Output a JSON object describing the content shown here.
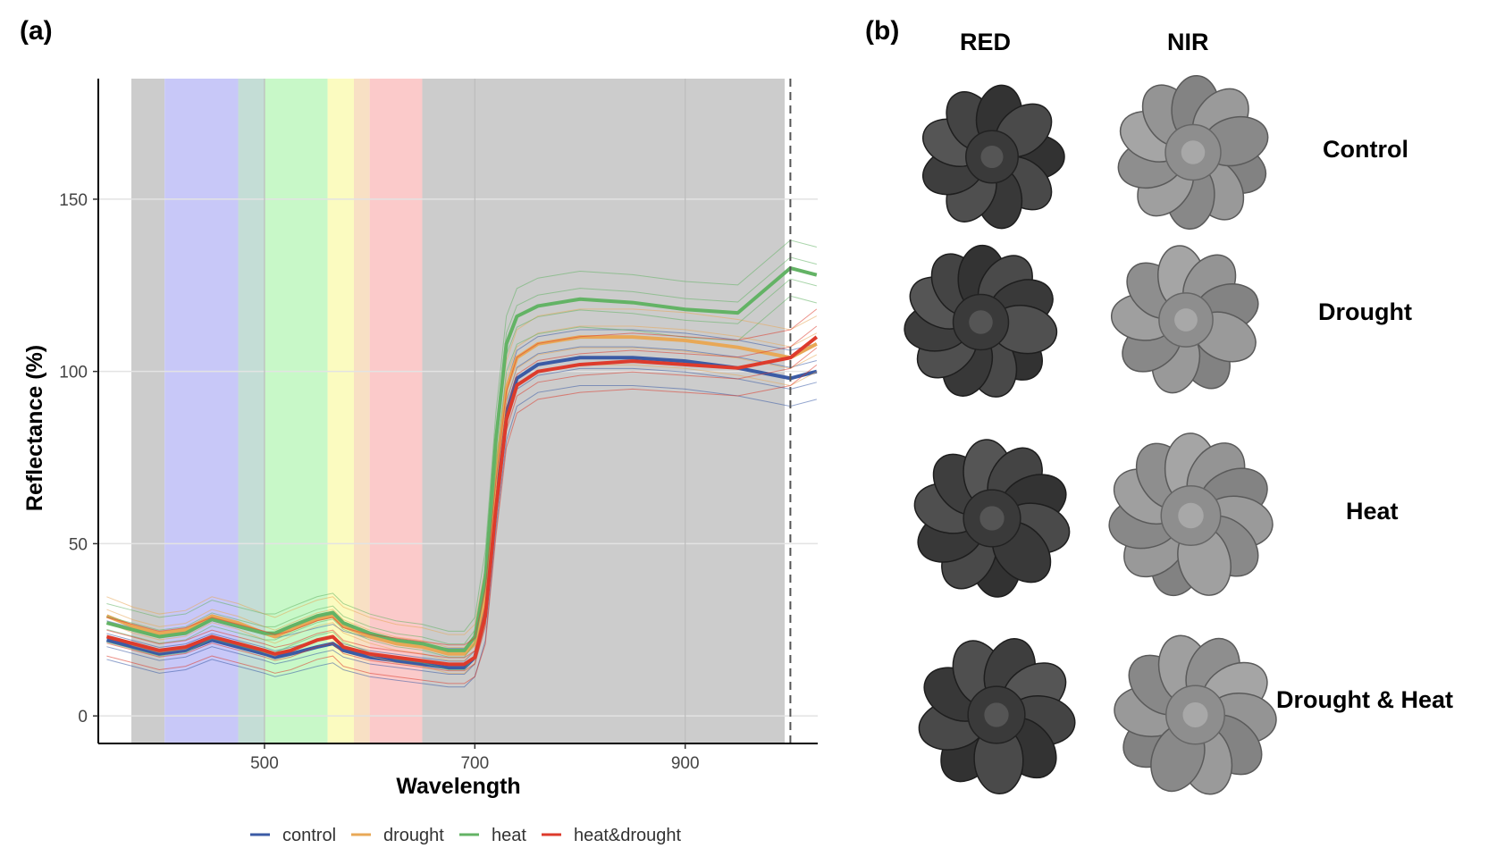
{
  "panel_a_label": "(a)",
  "panel_b_label": "(b)",
  "chart_data": {
    "type": "line",
    "xlabel": "Wavelength",
    "ylabel": "Reflectance (%)",
    "xlim": [
      342,
      1026
    ],
    "ylim": [
      -8,
      185
    ],
    "x_ticks": [
      500,
      700,
      900
    ],
    "y_ticks": [
      0,
      50,
      100,
      150
    ],
    "grid": true,
    "legend_position": "bottom",
    "vline": 1000,
    "x": [
      350,
      375,
      400,
      425,
      450,
      475,
      500,
      510,
      525,
      550,
      565,
      575,
      600,
      625,
      650,
      675,
      690,
      700,
      710,
      720,
      730,
      740,
      760,
      800,
      850,
      900,
      950,
      1000,
      1025
    ],
    "series": [
      {
        "name": "control",
        "color": "#3b5ba5",
        "values": [
          22,
          20,
          18,
          19,
          22,
          20,
          18,
          17,
          18,
          20,
          21,
          19,
          17,
          16,
          15,
          14,
          14,
          17,
          30,
          62,
          88,
          98,
          102,
          104,
          104,
          103,
          101,
          98,
          100
        ]
      },
      {
        "name": "drought",
        "color": "#e8a857",
        "values": [
          29,
          26,
          24,
          25,
          29,
          27,
          24,
          23,
          25,
          28,
          29,
          26,
          23,
          21,
          20,
          18,
          18,
          21,
          35,
          70,
          95,
          104,
          108,
          110,
          110,
          109,
          107,
          104,
          108
        ]
      },
      {
        "name": "heat",
        "color": "#63b365",
        "values": [
          27,
          25,
          23,
          24,
          28,
          26,
          24,
          24,
          26,
          29,
          30,
          27,
          24,
          22,
          21,
          19,
          19,
          23,
          40,
          80,
          108,
          116,
          119,
          121,
          120,
          118,
          117,
          130,
          128
        ]
      },
      {
        "name": "heat&drought",
        "color": "#dd3b2c",
        "values": [
          23,
          21,
          19,
          20,
          23,
          21,
          19,
          18,
          19,
          22,
          23,
          20,
          18,
          17,
          16,
          15,
          15,
          17,
          29,
          60,
          86,
          96,
          100,
          102,
          103,
          102,
          101,
          104,
          110
        ]
      }
    ],
    "color_bands": [
      {
        "x0": 342,
        "x1": 405,
        "color": "#cccccc"
      },
      {
        "x0": 405,
        "x1": 475,
        "color": "#c8c8f8"
      },
      {
        "x0": 475,
        "x1": 500,
        "color": "#c4ddd6"
      },
      {
        "x0": 500,
        "x1": 560,
        "color": "#c8f8c8"
      },
      {
        "x0": 560,
        "x1": 585,
        "color": "#fbfbc0"
      },
      {
        "x0": 585,
        "x1": 600,
        "color": "#f8e0c4"
      },
      {
        "x0": 600,
        "x1": 650,
        "color": "#fbcaca"
      },
      {
        "x0": 650,
        "x1": 1026,
        "color": "#cccccc"
      }
    ]
  },
  "panel_b": {
    "columns": [
      "RED",
      "NIR"
    ],
    "rows": [
      "Control",
      "Drought",
      "Heat",
      "Drought & Heat"
    ]
  }
}
